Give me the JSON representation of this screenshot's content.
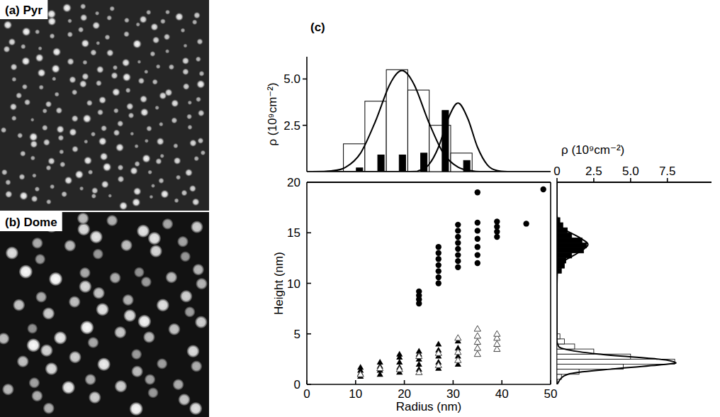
{
  "panels": [
    {
      "label": "(a) Pyr"
    },
    {
      "label": "(b) Dome"
    },
    {
      "label": "(c)"
    }
  ],
  "chart_data": [
    {
      "type": "histogram",
      "y_label": "ρ (10⁹cm⁻²)",
      "bins": [
        7.5,
        11.9,
        16.3,
        20.7,
        25.1,
        29.5,
        33.9
      ],
      "xlim": [
        0,
        50
      ],
      "ylim": [
        0,
        6.2
      ],
      "yticks": [
        2.5,
        {
          "value": 5,
          "label": "5.0"
        }
      ],
      "tick_labels": "y",
      "series": [
        {
          "type": "bar",
          "color": "#ffffff",
          "values": [
            1.5,
            3.8,
            5.5,
            4.4,
            2.5,
            1.0
          ]
        },
        {
          "type": "bar",
          "color": "#000000",
          "values": [
            0.2,
            0.9,
            0.9,
            1.0,
            3.3,
            0.6
          ]
        },
        {
          "type": "line",
          "color": "#000000",
          "x": [
            0,
            5,
            8,
            11,
            14,
            17,
            19.5,
            22,
            25,
            28,
            31,
            34,
            37,
            50
          ],
          "values": [
            0,
            0.04,
            0.24,
            0.99,
            2.67,
            4.7,
            5.45,
            4.7,
            2.67,
            0.99,
            0.24,
            0.04,
            0,
            0
          ]
        },
        {
          "type": "line",
          "color": "#000000",
          "x": [
            0,
            20,
            23,
            25,
            27,
            29,
            31,
            33,
            35,
            37,
            39,
            42,
            50
          ],
          "values": [
            0,
            0,
            0.06,
            0.37,
            1.32,
            2.87,
            3.7,
            2.87,
            1.32,
            0.37,
            0.06,
            0,
            0
          ]
        }
      ]
    },
    {
      "type": "scatter",
      "x_label": "Radius (nm)",
      "y_label": "Height (nm)",
      "xlim": [
        0,
        50
      ],
      "ylim": [
        0,
        20
      ],
      "xticks": [
        0,
        10,
        20,
        30,
        40,
        50
      ],
      "yticks": [
        0,
        5,
        10,
        15,
        20
      ],
      "series": [
        {
          "marker": "circle",
          "color": "#000000",
          "x": [
            23,
            23,
            23,
            23,
            27,
            27,
            27,
            27,
            27,
            27,
            27,
            31,
            31,
            31,
            31,
            31,
            31,
            31,
            31,
            35,
            35,
            35,
            35,
            35,
            35,
            35,
            39,
            39,
            39,
            39,
            45,
            48.5
          ],
          "values": [
            8.0,
            8.4,
            8.8,
            9.2,
            10.0,
            10.6,
            11.2,
            11.8,
            12.4,
            13.0,
            13.6,
            11.6,
            12.2,
            12.8,
            13.4,
            14.0,
            14.6,
            15.2,
            15.8,
            12.0,
            12.8,
            13.6,
            14.4,
            15.2,
            16.0,
            19.0,
            14.6,
            15.1,
            15.6,
            16.1,
            15.9,
            19.3
          ]
        },
        {
          "marker": "triangle",
          "color": "#000000",
          "x": [
            11,
            11,
            11,
            11,
            15,
            15,
            15,
            15,
            19,
            19,
            19,
            19,
            19,
            23,
            23,
            23,
            23,
            23,
            27,
            27,
            27,
            27,
            27,
            31,
            31,
            31,
            31
          ],
          "values": [
            0.8,
            1.1,
            1.4,
            1.7,
            1.0,
            1.4,
            1.8,
            2.2,
            1.2,
            1.7,
            2.2,
            2.7,
            3.0,
            1.5,
            2.0,
            2.5,
            3.0,
            3.3,
            1.6,
            2.2,
            2.8,
            3.4,
            4.0,
            2.0,
            2.8,
            3.6,
            4.3
          ]
        },
        {
          "marker": "triangle-open",
          "color": "#444444",
          "x": [
            11,
            15,
            19,
            23,
            23,
            27,
            27,
            31,
            31,
            31,
            35,
            35,
            35,
            35,
            35,
            39,
            39,
            39,
            39
          ],
          "values": [
            1.0,
            1.6,
            1.5,
            1.2,
            2.8,
            1.9,
            3.1,
            2.4,
            3.2,
            4.6,
            3.0,
            3.6,
            4.2,
            4.8,
            5.5,
            3.5,
            4.0,
            4.6,
            5.0
          ]
        }
      ]
    },
    {
      "type": "histogram",
      "orientation": "horizontal",
      "x_label": "ρ (10⁹cm⁻²)",
      "xlim": [
        0,
        10.5
      ],
      "xticks": [
        0,
        2.5,
        {
          "value": 5,
          "label": "5.0"
        },
        7.5
      ],
      "ylim": [
        0,
        20
      ],
      "tick_labels": "x",
      "series": [
        {
          "type": "bar",
          "color": "#ffffff",
          "bins": [
            0.5,
            1,
            1.5,
            2,
            2.5,
            3,
            3.5,
            4,
            4.5,
            5
          ],
          "values": [
            0.3,
            1.5,
            4.5,
            8.0,
            5.0,
            2.5,
            1.2,
            0.5,
            0.2
          ]
        },
        {
          "type": "bar",
          "color": "#000000",
          "bins": [
            11,
            11.5,
            12,
            12.5,
            13,
            13.5,
            14,
            14.5,
            15,
            15.5,
            16,
            16.5
          ],
          "values": [
            0.3,
            0.5,
            0.6,
            1.0,
            1.8,
            2.0,
            1.7,
            1.0,
            0.7,
            0.4,
            0.2
          ]
        },
        {
          "type": "line",
          "color": "#000000",
          "x": [
            0,
            1,
            1.5,
            2,
            2.2,
            2.5,
            3,
            3.5,
            4,
            5
          ],
          "values": [
            0,
            0.74,
            3.6,
            7.5,
            8.0,
            6.9,
            2.8,
            0.5,
            0.04,
            0
          ]
        },
        {
          "type": "line",
          "color": "#000000",
          "x": [
            5,
            11,
            12,
            13,
            13.8,
            14.5,
            15.5,
            16.5,
            17.5,
            20
          ],
          "values": [
            0,
            0.02,
            0.28,
            1.41,
            2.1,
            1.56,
            0.35,
            0.02,
            0,
            0
          ]
        }
      ]
    }
  ]
}
